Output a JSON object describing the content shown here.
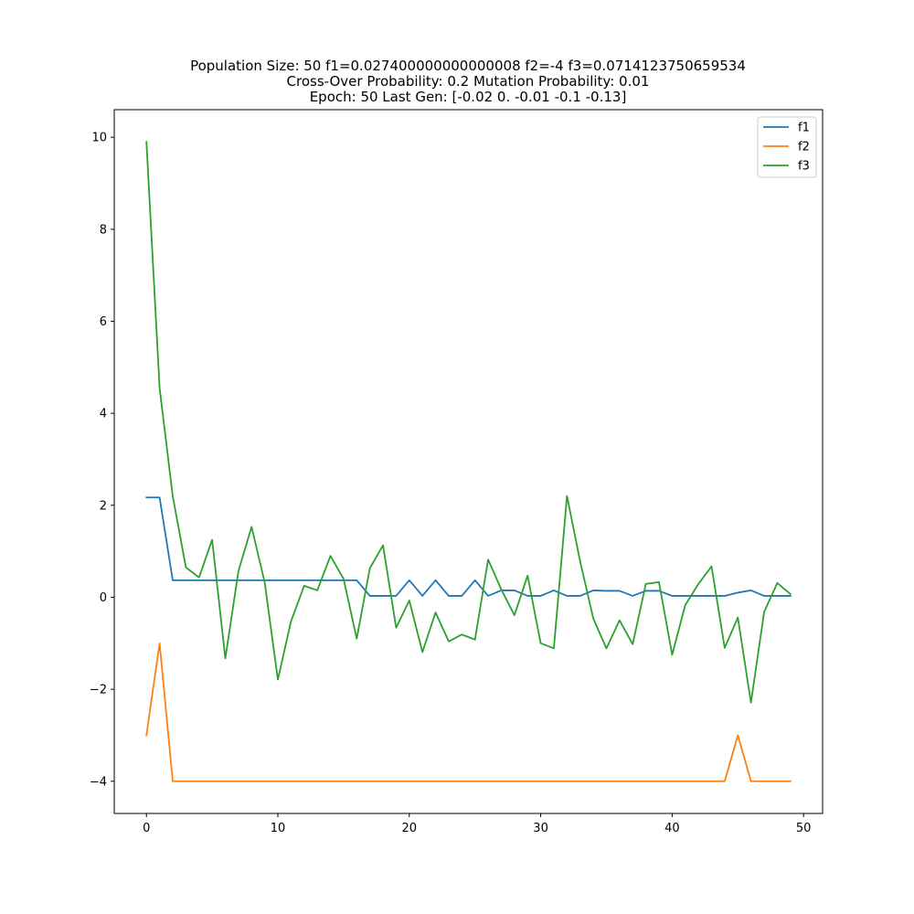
{
  "chart_data": {
    "type": "line",
    "title_lines": [
      "Population Size: 50 f1=0.027400000000000008 f2=-4 f3=0.0714123750659534",
      "Cross-Over Probability: 0.2 Mutation Probability: 0.01",
      "Epoch: 50 Last Gen: [-0.02  0.   -0.01 -0.1  -0.13]"
    ],
    "xlabel": "",
    "ylabel": "",
    "xlim": [
      -2.45,
      51.45
    ],
    "ylim": [
      -4.7,
      10.6
    ],
    "x_ticks": [
      0,
      10,
      20,
      30,
      40,
      50
    ],
    "x_tick_labels": [
      "0",
      "10",
      "20",
      "30",
      "40",
      "50"
    ],
    "y_ticks": [
      -4,
      -2,
      0,
      2,
      4,
      6,
      8,
      10
    ],
    "y_tick_labels": [
      "−4",
      "−2",
      "0",
      "2",
      "4",
      "6",
      "8",
      "10"
    ],
    "grid": false,
    "legend_position": "top-right",
    "x": [
      0,
      1,
      2,
      3,
      4,
      5,
      6,
      7,
      8,
      9,
      10,
      11,
      12,
      13,
      14,
      15,
      16,
      17,
      18,
      19,
      20,
      21,
      22,
      23,
      24,
      25,
      26,
      27,
      28,
      29,
      30,
      31,
      32,
      33,
      34,
      35,
      36,
      37,
      38,
      39,
      40,
      41,
      42,
      43,
      44,
      45,
      46,
      47,
      48,
      49
    ],
    "series": [
      {
        "name": "f1",
        "color": "#1f77b4",
        "values": [
          2.17,
          2.17,
          0.37,
          0.37,
          0.37,
          0.37,
          0.37,
          0.37,
          0.37,
          0.37,
          0.37,
          0.37,
          0.37,
          0.37,
          0.37,
          0.37,
          0.37,
          0.03,
          0.03,
          0.03,
          0.37,
          0.03,
          0.37,
          0.03,
          0.03,
          0.37,
          0.03,
          0.15,
          0.15,
          0.03,
          0.03,
          0.15,
          0.03,
          0.03,
          0.15,
          0.14,
          0.14,
          0.03,
          0.14,
          0.14,
          0.03,
          0.03,
          0.03,
          0.03,
          0.03,
          0.1,
          0.15,
          0.03,
          0.03,
          0.03
        ]
      },
      {
        "name": "f2",
        "color": "#ff7f0e",
        "values": [
          -3,
          -1,
          -4,
          -4,
          -4,
          -4,
          -4,
          -4,
          -4,
          -4,
          -4,
          -4,
          -4,
          -4,
          -4,
          -4,
          -4,
          -4,
          -4,
          -4,
          -4,
          -4,
          -4,
          -4,
          -4,
          -4,
          -4,
          -4,
          -4,
          -4,
          -4,
          -4,
          -4,
          -4,
          -4,
          -4,
          -4,
          -4,
          -4,
          -4,
          -4,
          -4,
          -4,
          -4,
          -4,
          -3,
          -4,
          -4,
          -4,
          -4
        ]
      },
      {
        "name": "f3",
        "color": "#2ca02c",
        "values": [
          9.9,
          4.55,
          2.2,
          0.65,
          0.43,
          1.25,
          -1.33,
          0.57,
          1.53,
          0.32,
          -1.79,
          -0.52,
          0.25,
          0.15,
          0.9,
          0.4,
          -0.9,
          0.63,
          1.13,
          -0.66,
          -0.07,
          -1.19,
          -0.33,
          -0.96,
          -0.81,
          -0.92,
          0.82,
          0.17,
          -0.39,
          0.47,
          -1.0,
          -1.11,
          2.2,
          0.78,
          -0.46,
          -1.11,
          -0.5,
          -1.02,
          0.29,
          0.33,
          -1.25,
          -0.17,
          0.29,
          0.67,
          -1.1,
          -0.44,
          -2.29,
          -0.32,
          0.31,
          0.07
        ]
      }
    ]
  }
}
